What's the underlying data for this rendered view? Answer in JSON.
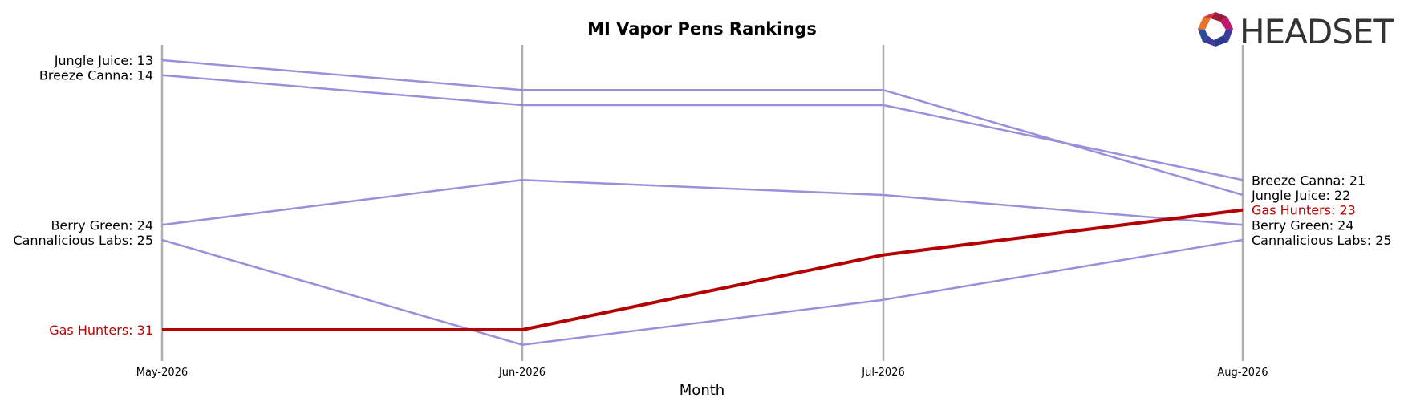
{
  "chart_data": {
    "type": "line",
    "title": "MI Vapor Pens Rankings",
    "xlabel": "Month",
    "ylabel": "",
    "categories": [
      "May-2026",
      "Jun-2026",
      "Jul-2026",
      "Aug-2026"
    ],
    "y_axis": "rank (inverted, lower rank on top)",
    "ylim": [
      12,
      32
    ],
    "grid": "vertical lines at each month",
    "legend": "none; series labelled at line ends",
    "series": [
      {
        "name": "Jungle Juice",
        "values": [
          13,
          15,
          15,
          22
        ],
        "color": "#9b8fdb",
        "highlight": false
      },
      {
        "name": "Breeze Canna",
        "values": [
          14,
          16,
          16,
          21
        ],
        "color": "#9b8fdb",
        "highlight": false
      },
      {
        "name": "Berry Green",
        "values": [
          24,
          21,
          22,
          24
        ],
        "color": "#9b8fdb",
        "highlight": false
      },
      {
        "name": "Cannalicious Labs",
        "values": [
          25,
          32,
          29,
          25
        ],
        "color": "#9b8fdb",
        "highlight": false
      },
      {
        "name": "Gas Hunters",
        "values": [
          31,
          31,
          26,
          23
        ],
        "color": "#b30000",
        "highlight": true
      }
    ]
  },
  "logo": {
    "text": "HEADSET"
  }
}
